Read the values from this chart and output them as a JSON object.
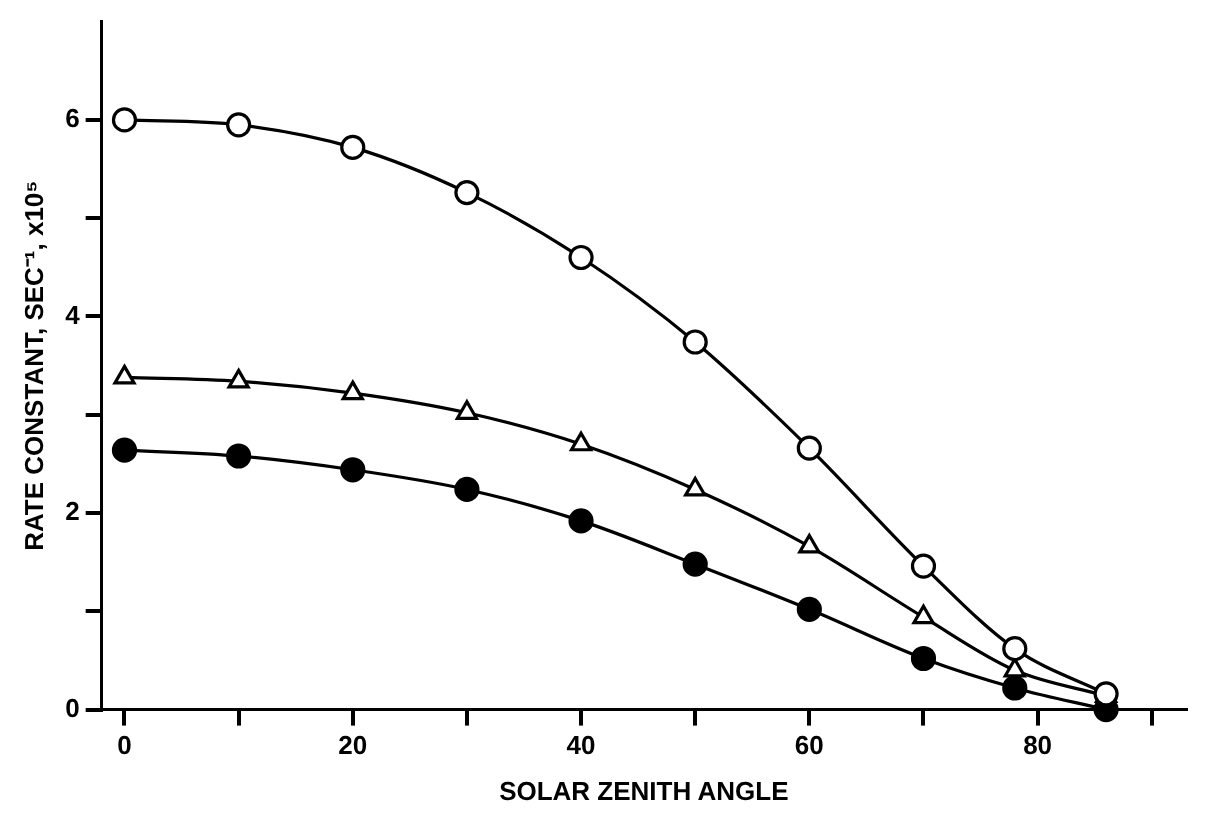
{
  "chart_data": {
    "type": "line",
    "xlabel": "SOLAR ZENITH ANGLE",
    "ylabel": "RATE CONSTANT, SEC⁻¹, x10⁵",
    "x": [
      0,
      10,
      20,
      30,
      40,
      50,
      60,
      70,
      78,
      86
    ],
    "series": [
      {
        "color": "#000000",
        "marker": "circle",
        "values": [
          6.0,
          5.95,
          5.72,
          5.26,
          4.6,
          3.74,
          2.66,
          1.46,
          0.62,
          0.16
        ]
      },
      {
        "color": "#000000",
        "marker": "triangle",
        "values": [
          3.38,
          3.34,
          3.22,
          3.02,
          2.7,
          2.24,
          1.66,
          0.94,
          0.4,
          0.14
        ]
      },
      {
        "color": "#000000",
        "marker": "circle",
        "values": [
          2.64,
          2.58,
          2.44,
          2.24,
          1.92,
          1.48,
          1.02,
          0.52,
          0.22,
          0.0
        ]
      }
    ],
    "xlim": [
      -2,
      93
    ],
    "ylim": [
      0,
      7
    ],
    "xticks": [
      0,
      {
        "value": 10,
        "label": null
      },
      20,
      {
        "value": 30,
        "label": null
      },
      40,
      {
        "value": 50,
        "label": null
      },
      60,
      {
        "value": 70,
        "label": null
      },
      80,
      {
        "value": 90,
        "label": null
      }
    ],
    "yticks": [
      0,
      {
        "value": 1,
        "label": null
      },
      2,
      {
        "value": 3,
        "label": null
      },
      4,
      {
        "value": 5,
        "label": null
      },
      6
    ],
    "grid": false,
    "legend": false,
    "line_style": "solid"
  }
}
